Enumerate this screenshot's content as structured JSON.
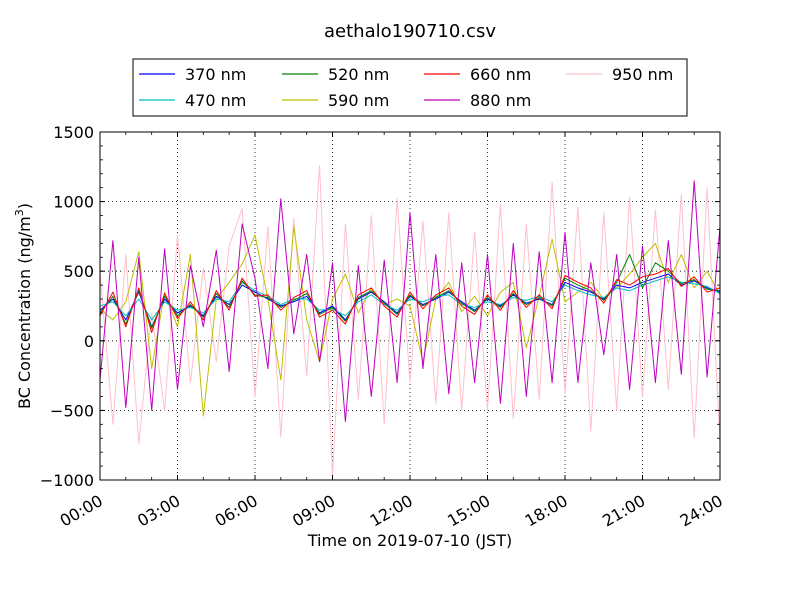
{
  "chart_data": {
    "type": "line",
    "title": "aethalo190710.csv",
    "xlabel": "Time on 2019-07-10 (JST)",
    "ylabel": "BC Concentration (ng/m³)",
    "ylabel_parts": {
      "main": "BC Concentration (ng/m",
      "sup": "3",
      "end": ")"
    },
    "xlim": [
      "00:00",
      "24:00"
    ],
    "ylim": [
      -1000,
      1500
    ],
    "x_ticks": [
      "00:00",
      "03:00",
      "06:00",
      "09:00",
      "12:00",
      "15:00",
      "18:00",
      "21:00",
      "24:00"
    ],
    "y_ticks": [
      "1500",
      "1000",
      "500",
      "0",
      "−500",
      "−1000"
    ],
    "y_tick_values": [
      1500,
      1000,
      500,
      0,
      -500,
      -1000
    ],
    "grid": true,
    "legend_position": "top, above plot",
    "x": [
      "00:00",
      "00:30",
      "01:00",
      "01:30",
      "02:00",
      "02:30",
      "03:00",
      "03:30",
      "04:00",
      "04:30",
      "05:00",
      "05:30",
      "06:00",
      "06:30",
      "07:00",
      "07:30",
      "08:00",
      "08:30",
      "09:00",
      "09:30",
      "10:00",
      "10:30",
      "11:00",
      "11:30",
      "12:00",
      "12:30",
      "13:00",
      "13:30",
      "14:00",
      "14:30",
      "15:00",
      "15:30",
      "16:00",
      "16:30",
      "17:00",
      "17:30",
      "18:00",
      "18:30",
      "19:00",
      "19:30",
      "20:00",
      "20:30",
      "21:00",
      "21:30",
      "22:00",
      "22:30",
      "23:00",
      "23:30",
      "24:00"
    ],
    "series": [
      {
        "name": "370 nm",
        "color": "#0000ff",
        "values": [
          220,
          300,
          150,
          350,
          100,
          300,
          200,
          250,
          180,
          320,
          260,
          400,
          350,
          300,
          250,
          280,
          320,
          200,
          250,
          150,
          300,
          350,
          280,
          200,
          320,
          260,
          300,
          350,
          280,
          220,
          300,
          250,
          330,
          270,
          300,
          260,
          420,
          380,
          350,
          300,
          400,
          380,
          420,
          450,
          480,
          400,
          430,
          380,
          350
        ]
      },
      {
        "name": "470 nm",
        "color": "#00bfbf",
        "values": [
          250,
          280,
          180,
          300,
          150,
          280,
          220,
          240,
          200,
          300,
          280,
          420,
          360,
          320,
          260,
          300,
          300,
          220,
          230,
          180,
          280,
          330,
          260,
          220,
          300,
          280,
          320,
          330,
          260,
          240,
          280,
          260,
          310,
          290,
          320,
          280,
          400,
          360,
          330,
          310,
          380,
          360,
          400,
          430,
          460,
          420,
          410,
          390,
          340
        ]
      },
      {
        "name": "520 nm",
        "color": "#008000",
        "values": [
          200,
          320,
          120,
          360,
          90,
          320,
          180,
          260,
          170,
          340,
          240,
          430,
          330,
          310,
          240,
          290,
          340,
          190,
          240,
          140,
          310,
          360,
          270,
          190,
          330,
          250,
          310,
          360,
          270,
          210,
          310,
          240,
          340,
          260,
          310,
          250,
          450,
          400,
          360,
          290,
          420,
          620,
          380,
          560,
          500,
          410,
          440,
          370,
          360
        ]
      },
      {
        "name": "590 nm",
        "color": "#bfbf00",
        "values": [
          230,
          150,
          280,
          640,
          -200,
          350,
          100,
          620,
          -540,
          300,
          420,
          550,
          760,
          300,
          -280,
          820,
          150,
          -150,
          300,
          480,
          200,
          380,
          260,
          300,
          250,
          -150,
          300,
          420,
          210,
          320,
          180,
          350,
          420,
          -50,
          320,
          730,
          280,
          350,
          420,
          300,
          380,
          480,
          600,
          700,
          420,
          620,
          380,
          500,
          330
        ]
      },
      {
        "name": "660 nm",
        "color": "#ff0000",
        "values": [
          180,
          350,
          100,
          380,
          60,
          340,
          160,
          280,
          150,
          360,
          220,
          450,
          320,
          330,
          220,
          310,
          360,
          170,
          220,
          120,
          330,
          380,
          250,
          170,
          350,
          230,
          330,
          380,
          250,
          190,
          330,
          220,
          360,
          240,
          330,
          230,
          470,
          420,
          380,
          270,
          440,
          400,
          460,
          480,
          520,
          390,
          460,
          350,
          380
        ]
      },
      {
        "name": "880 nm",
        "color": "#bf00bf",
        "values": [
          -280,
          720,
          -480,
          600,
          -500,
          660,
          -350,
          540,
          100,
          650,
          -220,
          840,
          450,
          -200,
          1020,
          50,
          620,
          -150,
          560,
          -580,
          540,
          -400,
          580,
          -300,
          920,
          -200,
          620,
          -380,
          560,
          -300,
          620,
          -450,
          700,
          -400,
          640,
          -300,
          780,
          -300,
          560,
          -100,
          620,
          -350,
          680,
          -300,
          720,
          -240,
          1150,
          -260,
          820
        ]
      },
      {
        "name": "950 nm",
        "color": "#ffc0cb",
        "values": [
          500,
          -600,
          620,
          -740,
          200,
          -500,
          760,
          -300,
          520,
          -150,
          680,
          950,
          -400,
          820,
          -690,
          880,
          -250,
          1260,
          -980,
          840,
          -420,
          900,
          -600,
          1020,
          -300,
          860,
          -450,
          920,
          -500,
          780,
          -500,
          980,
          -560,
          840,
          -420,
          1140,
          -380,
          960,
          -650,
          920,
          -500,
          1030,
          -400,
          940,
          -350,
          1050,
          -700,
          1100,
          -730
        ]
      }
    ]
  }
}
